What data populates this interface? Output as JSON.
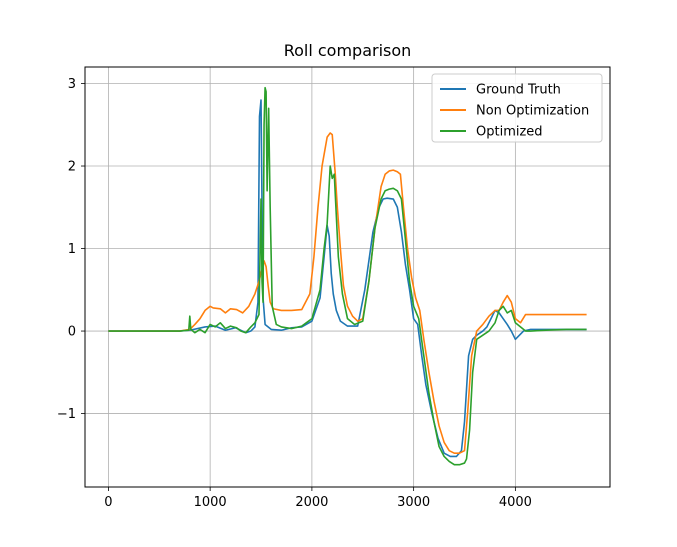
{
  "chart_data": {
    "type": "line",
    "title": "Roll comparison",
    "xlabel": "",
    "ylabel": "",
    "xlim": [
      -230,
      4930
    ],
    "ylim": [
      -1.89,
      3.2
    ],
    "grid": true,
    "legend_placement": "top-right",
    "x_ticks": [
      0,
      1000,
      2000,
      3000,
      4000
    ],
    "x_tick_labels": [
      "0",
      "1000",
      "2000",
      "3000",
      "4000"
    ],
    "y_ticks": [
      -1,
      0,
      1,
      2,
      3
    ],
    "y_tick_labels": [
      "−1",
      "0",
      "1",
      "2",
      "3"
    ],
    "series": [
      {
        "name": "Ground Truth",
        "color": "#1f77b4",
        "x": [
          0,
          700,
          800,
          950,
          1050,
          1150,
          1250,
          1350,
          1400,
          1440,
          1470,
          1485,
          1500,
          1510,
          1520,
          1540,
          1600,
          1700,
          1800,
          1900,
          2000,
          2080,
          2120,
          2150,
          2170,
          2190,
          2210,
          2240,
          2280,
          2350,
          2450,
          2520,
          2600,
          2660,
          2700,
          2740,
          2800,
          2840,
          2880,
          2920,
          2960,
          3000,
          3040,
          3080,
          3120,
          3180,
          3240,
          3300,
          3360,
          3420,
          3470,
          3500,
          3540,
          3580,
          3620,
          3680,
          3720,
          3760,
          3800,
          3840,
          3880,
          3920,
          3960,
          4000,
          4040,
          4080,
          4150,
          4300,
          4500,
          4700
        ],
        "y": [
          0,
          0,
          0.01,
          0.05,
          0.06,
          0.01,
          0.04,
          -0.02,
          0.0,
          0.05,
          0.35,
          2.6,
          2.8,
          1.5,
          0.4,
          0.08,
          0.02,
          0.01,
          0.04,
          0.05,
          0.12,
          0.4,
          0.9,
          1.28,
          1.15,
          0.7,
          0.45,
          0.25,
          0.12,
          0.06,
          0.06,
          0.5,
          1.2,
          1.5,
          1.6,
          1.61,
          1.6,
          1.5,
          1.2,
          0.8,
          0.5,
          0.15,
          0.08,
          -0.3,
          -0.65,
          -1.0,
          -1.3,
          -1.48,
          -1.52,
          -1.52,
          -1.45,
          -1.1,
          -0.3,
          -0.1,
          -0.05,
          0.0,
          0.05,
          0.15,
          0.25,
          0.22,
          0.15,
          0.08,
          0.0,
          -0.1,
          -0.05,
          0.0,
          0.02,
          0.02,
          0.02,
          0.02
        ]
      },
      {
        "name": "Non Optimization",
        "color": "#ff7f0e",
        "x": [
          0,
          700,
          800,
          850,
          900,
          950,
          1000,
          1030,
          1100,
          1150,
          1200,
          1260,
          1320,
          1380,
          1440,
          1480,
          1510,
          1530,
          1550,
          1570,
          1590,
          1620,
          1700,
          1800,
          1900,
          1980,
          2020,
          2060,
          2100,
          2150,
          2180,
          2200,
          2230,
          2250,
          2280,
          2310,
          2350,
          2400,
          2450,
          2500,
          2560,
          2620,
          2680,
          2720,
          2760,
          2800,
          2840,
          2870,
          2900,
          2940,
          2980,
          3020,
          3060,
          3100,
          3150,
          3200,
          3250,
          3300,
          3350,
          3400,
          3450,
          3500,
          3530,
          3570,
          3620,
          3680,
          3740,
          3800,
          3840,
          3880,
          3920,
          3960,
          4000,
          4050,
          4100,
          4150,
          4300,
          4500,
          4700
        ],
        "y": [
          0,
          0,
          0.02,
          0.08,
          0.15,
          0.25,
          0.3,
          0.28,
          0.27,
          0.22,
          0.27,
          0.26,
          0.22,
          0.3,
          0.45,
          0.6,
          0.75,
          0.85,
          0.78,
          0.55,
          0.35,
          0.27,
          0.25,
          0.25,
          0.26,
          0.45,
          0.9,
          1.5,
          2.0,
          2.35,
          2.4,
          2.38,
          1.9,
          1.5,
          1.0,
          0.55,
          0.3,
          0.18,
          0.12,
          0.15,
          0.6,
          1.25,
          1.75,
          1.9,
          1.94,
          1.95,
          1.93,
          1.9,
          1.5,
          1.0,
          0.65,
          0.4,
          0.25,
          -0.1,
          -0.5,
          -0.85,
          -1.15,
          -1.35,
          -1.45,
          -1.48,
          -1.48,
          -1.45,
          -1.0,
          -0.3,
          0.0,
          0.08,
          0.18,
          0.25,
          0.25,
          0.35,
          0.43,
          0.35,
          0.15,
          0.1,
          0.2,
          0.2,
          0.2,
          0.2,
          0.2
        ]
      },
      {
        "name": "Optimized",
        "color": "#2ca02c",
        "x": [
          0,
          700,
          790,
          800,
          810,
          850,
          900,
          950,
          1000,
          1050,
          1100,
          1150,
          1200,
          1260,
          1300,
          1350,
          1400,
          1440,
          1480,
          1500,
          1510,
          1520,
          1530,
          1540,
          1550,
          1560,
          1575,
          1590,
          1610,
          1650,
          1700,
          1800,
          1900,
          2000,
          2080,
          2120,
          2150,
          2180,
          2200,
          2220,
          2240,
          2260,
          2300,
          2350,
          2420,
          2500,
          2560,
          2620,
          2680,
          2720,
          2760,
          2800,
          2840,
          2880,
          2920,
          2960,
          3000,
          3050,
          3100,
          3150,
          3200,
          3250,
          3300,
          3350,
          3400,
          3450,
          3500,
          3520,
          3550,
          3580,
          3620,
          3680,
          3740,
          3800,
          3840,
          3880,
          3920,
          3960,
          4000,
          4050,
          4100,
          4150,
          4300,
          4500,
          4700
        ],
        "y": [
          0,
          0,
          0.01,
          0.18,
          0.02,
          -0.02,
          0.02,
          -0.02,
          0.08,
          0.05,
          0.1,
          0.03,
          0.06,
          0.04,
          0.0,
          -0.02,
          0.05,
          0.1,
          0.2,
          1.6,
          0.6,
          0.35,
          2.5,
          2.95,
          2.9,
          1.7,
          2.7,
          1.5,
          0.3,
          0.08,
          0.05,
          0.03,
          0.06,
          0.15,
          0.5,
          1.0,
          1.3,
          2.0,
          1.85,
          1.9,
          1.4,
          0.9,
          0.45,
          0.15,
          0.08,
          0.12,
          0.6,
          1.25,
          1.6,
          1.7,
          1.72,
          1.73,
          1.7,
          1.6,
          1.1,
          0.6,
          0.3,
          0.15,
          -0.3,
          -0.75,
          -1.1,
          -1.4,
          -1.52,
          -1.58,
          -1.62,
          -1.62,
          -1.6,
          -1.55,
          -1.2,
          -0.5,
          -0.1,
          -0.05,
          0.0,
          0.1,
          0.25,
          0.3,
          0.22,
          0.25,
          0.1,
          0.05,
          0.0,
          0.0,
          0.01,
          0.02,
          0.02
        ]
      }
    ]
  }
}
